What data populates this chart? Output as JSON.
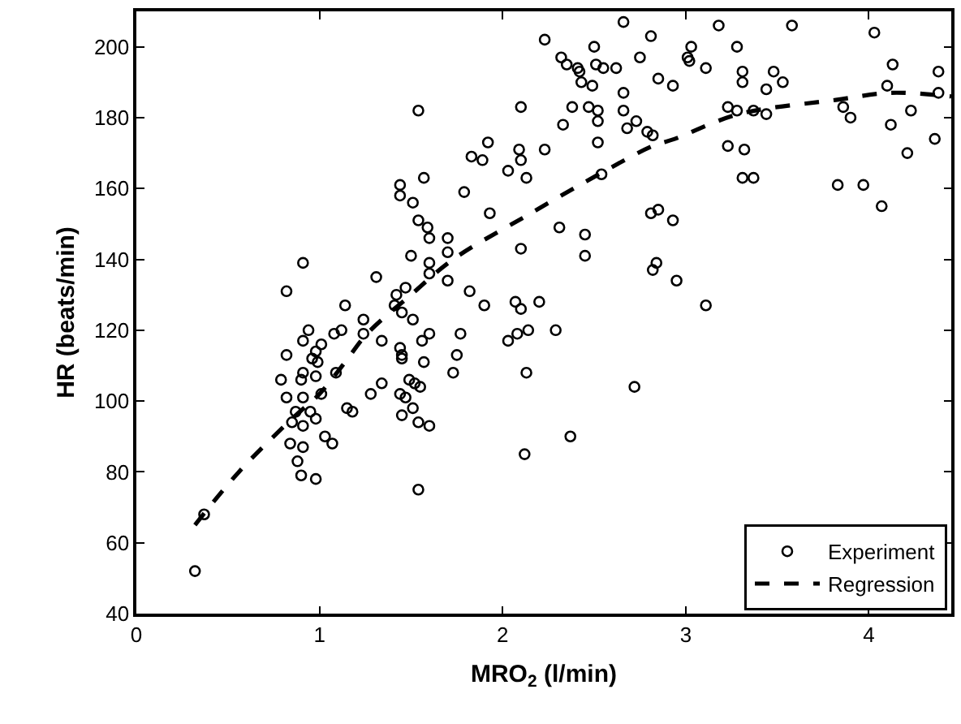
{
  "chart_data": {
    "type": "scatter",
    "xlabel": "MRO$_{2}$ (l/min)",
    "ylabel": "HR (beats/min)",
    "xlim": [
      0,
      4.45
    ],
    "xticks": [
      0,
      1,
      2,
      3,
      4
    ],
    "ylim": [
      40,
      210
    ],
    "yticks": [
      40,
      60,
      80,
      100,
      120,
      140,
      160,
      180,
      200
    ],
    "legend": "bottom right",
    "series": [
      {
        "name": "Experiment",
        "marker": "circle",
        "color": "#000000",
        "x": [
          0.91,
          0.82,
          1.31,
          1.14,
          1.24,
          1.12,
          0.94,
          0.91,
          0.82,
          1.01,
          0.98,
          0.96,
          0.99,
          1.08,
          1.24,
          1.34,
          1.44,
          0.79,
          0.82,
          0.9,
          0.91,
          0.98,
          1.01,
          1.09,
          0.91,
          0.87,
          0.95,
          0.85,
          0.91,
          0.98,
          1.03,
          1.07,
          0.84,
          0.91,
          0.88,
          0.9,
          0.98,
          1.15,
          1.18,
          1.28,
          1.34,
          0.37,
          0.32,
          2.66,
          2.81,
          2.23,
          2.5,
          2.32,
          2.35,
          2.41,
          2.42,
          2.43,
          2.49,
          2.51,
          2.55,
          2.62,
          2.75,
          2.85,
          2.66,
          1.54,
          2.1,
          2.38,
          2.47,
          2.52,
          2.66,
          2.68,
          2.73,
          2.79,
          2.33,
          2.52,
          2.52,
          1.92,
          1.83,
          1.89,
          2.09,
          2.1,
          2.23,
          2.03,
          2.13,
          1.44,
          1.44,
          1.57,
          1.51,
          1.79,
          1.93,
          1.54,
          1.59,
          1.6,
          1.7,
          1.7,
          2.54,
          2.81,
          2.85,
          2.31,
          2.45,
          2.45,
          2.1,
          1.5,
          1.6,
          1.6,
          1.7,
          2.84,
          2.82,
          1.82,
          1.9,
          2.07,
          2.1,
          2.2,
          1.47,
          1.42,
          1.41,
          1.45,
          1.51,
          1.6,
          1.77,
          1.56,
          2.03,
          2.08,
          2.14,
          2.29,
          1.75,
          1.45,
          1.45,
          1.57,
          1.73,
          1.49,
          1.52,
          1.55,
          1.44,
          1.47,
          1.51,
          1.45,
          1.54,
          1.6,
          2.13,
          2.72,
          2.37,
          2.12,
          1.54,
          3.18,
          3.58,
          4.03,
          3.03,
          3.28,
          3.01,
          3.02,
          3.11,
          2.93,
          3.31,
          3.31,
          3.48,
          3.53,
          3.44,
          4.13,
          4.1,
          4.38,
          4.38,
          2.82,
          3.23,
          3.28,
          3.37,
          3.44,
          3.86,
          3.9,
          4.23,
          4.12,
          3.23,
          3.32,
          4.21,
          4.36,
          3.31,
          3.37,
          3.83,
          3.97,
          4.07,
          2.93,
          2.95,
          3.11
        ],
        "values": [
          139,
          131,
          135,
          127,
          123,
          120,
          120,
          117,
          113,
          116,
          114,
          112,
          111,
          119,
          119,
          117,
          115,
          106,
          101,
          106,
          108,
          107,
          102,
          108,
          101,
          97,
          97,
          94,
          93,
          95,
          90,
          88,
          88,
          87,
          83,
          79,
          78,
          98,
          97,
          102,
          105,
          68,
          52,
          207,
          203,
          202,
          200,
          197,
          195,
          194,
          193,
          190,
          189,
          195,
          194,
          194,
          197,
          191,
          187,
          182,
          183,
          183,
          183,
          182,
          182,
          177,
          179,
          176,
          178,
          179,
          173,
          173,
          169,
          168,
          171,
          168,
          171,
          165,
          163,
          161,
          158,
          163,
          156,
          159,
          153,
          151,
          149,
          146,
          146,
          142,
          164,
          153,
          154,
          149,
          147,
          141,
          143,
          141,
          139,
          136,
          134,
          139,
          137,
          131,
          127,
          128,
          126,
          128,
          132,
          130,
          127,
          125,
          123,
          119,
          119,
          117,
          117,
          119,
          120,
          120,
          113,
          113,
          112,
          111,
          108,
          106,
          105,
          104,
          102,
          101,
          98,
          96,
          94,
          93,
          108,
          104,
          90,
          85,
          75,
          206,
          206,
          204,
          200,
          200,
          197,
          196,
          194,
          189,
          193,
          190,
          193,
          190,
          188,
          195,
          189,
          193,
          187,
          175,
          183,
          182,
          182,
          181,
          183,
          180,
          182,
          178,
          172,
          171,
          170,
          174,
          163,
          163,
          161,
          161,
          155,
          151,
          134,
          127
        ]
      },
      {
        "name": "Regression",
        "type": "line",
        "line_style": "dashed",
        "color": "#000000",
        "x": [
          0.32,
          0.56,
          0.85,
          1.0,
          1.14,
          1.26,
          1.5,
          1.73,
          2.12,
          2.56,
          2.82,
          2.94,
          3.29,
          3.82,
          4.12,
          4.45
        ],
        "values": [
          65,
          80,
          95,
          102,
          111,
          119,
          130,
          140,
          152,
          165,
          172,
          174,
          181,
          185,
          187,
          186
        ]
      }
    ]
  }
}
